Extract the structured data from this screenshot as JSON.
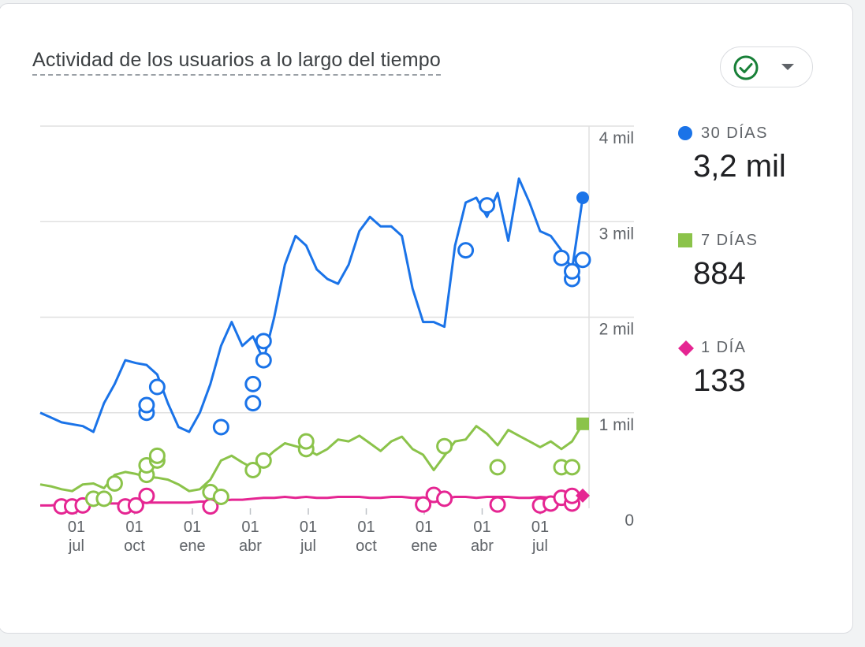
{
  "card": {
    "title": "Actividad de los usuarios a lo largo del tiempo",
    "status_icon": "check-circle-icon",
    "dropdown_icon": "caret-down-icon",
    "status_color": "#188038"
  },
  "legend": [
    {
      "label": "30 DÍAS",
      "value": "3,2 mil",
      "shape": "circle",
      "color": "#1a73e8"
    },
    {
      "label": "7 DÍAS",
      "value": "884",
      "shape": "square",
      "color": "#8bc34a"
    },
    {
      "label": "1 DÍA",
      "value": "133",
      "shape": "diamond",
      "color": "#e52592"
    }
  ],
  "chart_data": {
    "type": "line",
    "x_ticks": [
      {
        "day": "01",
        "month": "jul"
      },
      {
        "day": "01",
        "month": "oct"
      },
      {
        "day": "01",
        "month": "ene"
      },
      {
        "day": "01",
        "month": "abr"
      },
      {
        "day": "01",
        "month": "jul"
      },
      {
        "day": "01",
        "month": "oct"
      },
      {
        "day": "01",
        "month": "ene"
      },
      {
        "day": "01",
        "month": "abr"
      },
      {
        "day": "01",
        "month": "jul"
      }
    ],
    "y_ticks": [
      "0",
      "1 mil",
      "2 mil",
      "3 mil",
      "4 mil"
    ],
    "ylim": [
      0,
      4000
    ],
    "grid": true,
    "series": [
      {
        "name": "30 DÍAS",
        "color": "#1a73e8",
        "values": [
          1000,
          950,
          900,
          880,
          860,
          800,
          1100,
          1300,
          1550,
          1520,
          1500,
          1400,
          1100,
          850,
          800,
          1000,
          1300,
          1700,
          1950,
          1700,
          1800,
          1550,
          2000,
          2550,
          2850,
          2750,
          2500,
          2400,
          2350,
          2550,
          2900,
          3050,
          2950,
          2950,
          2850,
          2300,
          1950,
          1950,
          1900,
          2750,
          3200,
          3250,
          3050,
          3300,
          2800,
          3450,
          3200,
          2900,
          2850,
          2700,
          2500,
          3250
        ],
        "annotations": [
          {
            "x": 10,
            "y": 1000
          },
          {
            "x": 10,
            "y": 1080
          },
          {
            "x": 11,
            "y": 1270
          },
          {
            "x": 17,
            "y": 850
          },
          {
            "x": 20,
            "y": 1100
          },
          {
            "x": 20,
            "y": 1300
          },
          {
            "x": 21,
            "y": 1550
          },
          {
            "x": 21,
            "y": 1750
          },
          {
            "x": 40,
            "y": 2700
          },
          {
            "x": 42,
            "y": 3170
          },
          {
            "x": 49,
            "y": 2620
          },
          {
            "x": 50,
            "y": 2400
          },
          {
            "x": 50,
            "y": 2480
          },
          {
            "x": 51,
            "y": 2600
          }
        ]
      },
      {
        "name": "7 DÍAS",
        "color": "#8bc34a",
        "values": [
          250,
          230,
          200,
          180,
          250,
          260,
          210,
          350,
          380,
          360,
          330,
          320,
          300,
          250,
          180,
          200,
          300,
          500,
          550,
          480,
          420,
          500,
          600,
          680,
          650,
          620,
          560,
          620,
          720,
          700,
          760,
          680,
          600,
          700,
          750,
          620,
          560,
          400,
          550,
          700,
          720,
          860,
          780,
          660,
          820,
          760,
          700,
          640,
          700,
          620,
          700,
          884
        ],
        "annotations": [
          {
            "x": 5,
            "y": 100
          },
          {
            "x": 6,
            "y": 100
          },
          {
            "x": 7,
            "y": 260
          },
          {
            "x": 10,
            "y": 350
          },
          {
            "x": 10,
            "y": 450
          },
          {
            "x": 11,
            "y": 500
          },
          {
            "x": 11,
            "y": 550
          },
          {
            "x": 16,
            "y": 170
          },
          {
            "x": 17,
            "y": 120
          },
          {
            "x": 20,
            "y": 400
          },
          {
            "x": 21,
            "y": 500
          },
          {
            "x": 25,
            "y": 620
          },
          {
            "x": 25,
            "y": 700
          },
          {
            "x": 38,
            "y": 650
          },
          {
            "x": 43,
            "y": 430
          },
          {
            "x": 49,
            "y": 430
          },
          {
            "x": 50,
            "y": 430
          }
        ]
      },
      {
        "name": "1 DÍA",
        "color": "#e52592",
        "values": [
          30,
          30,
          40,
          40,
          40,
          40,
          50,
          50,
          50,
          50,
          60,
          60,
          60,
          60,
          60,
          70,
          70,
          80,
          90,
          90,
          100,
          110,
          110,
          120,
          110,
          120,
          110,
          110,
          120,
          120,
          120,
          110,
          110,
          120,
          120,
          110,
          110,
          100,
          100,
          120,
          120,
          110,
          120,
          120,
          120,
          110,
          110,
          120,
          110,
          120,
          120,
          133
        ],
        "annotations": [
          {
            "x": 2,
            "y": 20
          },
          {
            "x": 3,
            "y": 20
          },
          {
            "x": 4,
            "y": 30
          },
          {
            "x": 8,
            "y": 20
          },
          {
            "x": 9,
            "y": 30
          },
          {
            "x": 10,
            "y": 130
          },
          {
            "x": 16,
            "y": 20
          },
          {
            "x": 36,
            "y": 40
          },
          {
            "x": 37,
            "y": 140
          },
          {
            "x": 38,
            "y": 100
          },
          {
            "x": 43,
            "y": 40
          },
          {
            "x": 47,
            "y": 30
          },
          {
            "x": 48,
            "y": 50
          },
          {
            "x": 49,
            "y": 110
          },
          {
            "x": 50,
            "y": 50
          },
          {
            "x": 50,
            "y": 130
          }
        ]
      }
    ]
  }
}
